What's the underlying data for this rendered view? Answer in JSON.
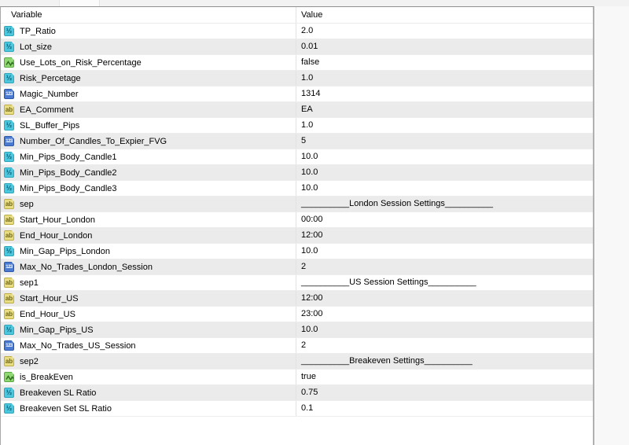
{
  "tabstrip": {
    "visible_tab_edge": true
  },
  "table": {
    "columns": {
      "variable": "Variable",
      "value": "Value"
    },
    "rows": [
      {
        "type": "double",
        "name": "TP_Ratio",
        "value": "2.0"
      },
      {
        "type": "double",
        "name": "Lot_size",
        "value": "0.01"
      },
      {
        "type": "boolean",
        "name": "Use_Lots_on_Risk_Percentage",
        "value": "false"
      },
      {
        "type": "double",
        "name": "Risk_Percetage",
        "value": "1.0"
      },
      {
        "type": "integer",
        "name": "Magic_Number",
        "value": "1314"
      },
      {
        "type": "string",
        "name": "EA_Comment",
        "value": "EA"
      },
      {
        "type": "double",
        "name": "SL_Buffer_Pips",
        "value": "1.0"
      },
      {
        "type": "integer",
        "name": "Number_Of_Candles_To_Expier_FVG",
        "value": "5"
      },
      {
        "type": "double",
        "name": "Min_Pips_Body_Candle1",
        "value": "10.0"
      },
      {
        "type": "double",
        "name": "Min_Pips_Body_Candle2",
        "value": "10.0"
      },
      {
        "type": "double",
        "name": "Min_Pips_Body_Candle3",
        "value": "10.0"
      },
      {
        "type": "string",
        "name": "sep",
        "value": "__________London Session Settings__________"
      },
      {
        "type": "string",
        "name": "Start_Hour_London",
        "value": "00:00"
      },
      {
        "type": "string",
        "name": "End_Hour_London",
        "value": "12:00"
      },
      {
        "type": "double",
        "name": "Min_Gap_Pips_London",
        "value": "10.0"
      },
      {
        "type": "integer",
        "name": "Max_No_Trades_London_Session",
        "value": "2"
      },
      {
        "type": "string",
        "name": "sep1",
        "value": "__________US Session Settings__________"
      },
      {
        "type": "string",
        "name": "Start_Hour_US",
        "value": "12:00"
      },
      {
        "type": "string",
        "name": "End_Hour_US",
        "value": "23:00"
      },
      {
        "type": "double",
        "name": "Min_Gap_Pips_US",
        "value": "10.0"
      },
      {
        "type": "integer",
        "name": "Max_No_Trades_US_Session",
        "value": "2"
      },
      {
        "type": "string",
        "name": "sep2",
        "value": "__________Breakeven Settings__________"
      },
      {
        "type": "boolean",
        "name": "is_BreakEven",
        "value": "true"
      },
      {
        "type": "double",
        "name": "Breakeven SL Ratio",
        "value": "0.75"
      },
      {
        "type": "double",
        "name": "Breakeven Set SL Ratio",
        "value": "0.1"
      }
    ]
  },
  "icons": {
    "double": {
      "glyph": "½",
      "bg": "#4cc7dd",
      "border": "#2da6bc",
      "fg": "#0e5d75"
    },
    "integer": {
      "glyph": "123",
      "bg": "#4a7bd0",
      "border": "#2d59a8",
      "fg": "#ffffff"
    },
    "string": {
      "glyph": "ab",
      "bg": "#e8dd82",
      "border": "#bcae45",
      "fg": "#6e6718"
    },
    "boolean": {
      "glyph": "",
      "bg": "#90d873",
      "border": "#58a93e",
      "fg": "#2e6e1e"
    }
  },
  "colors": {
    "row_stripe": "#ebebeb",
    "panel_border": "#a8a8a8",
    "grid_line": "#e2e2e2",
    "background": "#f8f8f8"
  }
}
